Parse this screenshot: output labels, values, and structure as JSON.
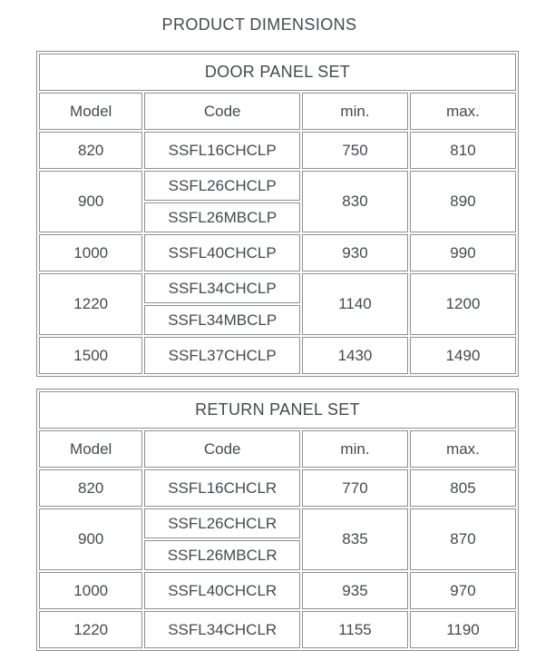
{
  "page_title": "PRODUCT DIMENSIONS",
  "colors": {
    "text": "#45494e",
    "border": "#8f8f8f",
    "background": "#ffffff"
  },
  "tables": [
    {
      "title": "DOOR PANEL SET",
      "columns": [
        "Model",
        "Code",
        "min.",
        "max."
      ],
      "rows": [
        {
          "model": "820",
          "codes": [
            "SSFL16CHCLP"
          ],
          "min": "750",
          "max": "810"
        },
        {
          "model": "900",
          "codes": [
            "SSFL26CHCLP",
            "SSFL26MBCLP"
          ],
          "min": "830",
          "max": "890"
        },
        {
          "model": "1000",
          "codes": [
            "SSFL40CHCLP"
          ],
          "min": "930",
          "max": "990"
        },
        {
          "model": "1220",
          "codes": [
            "SSFL34CHCLP",
            "SSFL34MBCLP"
          ],
          "min": "1140",
          "max": "1200"
        },
        {
          "model": "1500",
          "codes": [
            "SSFL37CHCLP"
          ],
          "min": "1430",
          "max": "1490"
        }
      ]
    },
    {
      "title": "RETURN PANEL SET",
      "columns": [
        "Model",
        "Code",
        "min.",
        "max."
      ],
      "rows": [
        {
          "model": "820",
          "codes": [
            "SSFL16CHCLR"
          ],
          "min": "770",
          "max": "805"
        },
        {
          "model": "900",
          "codes": [
            "SSFL26CHCLR",
            "SSFL26MBCLR"
          ],
          "min": "835",
          "max": "870"
        },
        {
          "model": "1000",
          "codes": [
            "SSFL40CHCLR"
          ],
          "min": "935",
          "max": "970"
        },
        {
          "model": "1220",
          "codes": [
            "SSFL34CHCLR"
          ],
          "min": "1155",
          "max": "1190"
        }
      ]
    }
  ]
}
